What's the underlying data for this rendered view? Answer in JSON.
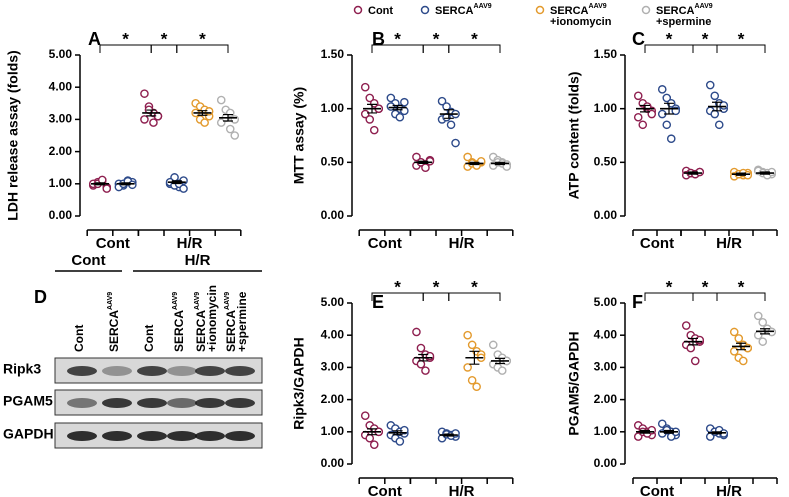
{
  "legend": [
    {
      "base": "Cont",
      "color": "#8e1f4f"
    },
    {
      "base": "SERCA",
      "sup": "AAV9",
      "color": "#2d4a8a"
    },
    {
      "base": "SERCA",
      "sup": "AAV9",
      "extra": "+ionomycin",
      "color": "#e39a2d"
    },
    {
      "base": "SERCA",
      "sup": "AAV9",
      "extra": "+spermine",
      "color": "#b0b0b0"
    }
  ],
  "chart_data": [
    {
      "type": "dotplot",
      "panel": "A",
      "ylabel": "LDH release assay (folds)",
      "ylim": [
        0,
        5
      ],
      "yticks": [
        {
          "value": 0,
          "label": "0.00"
        },
        {
          "value": 1,
          "label": "1.00"
        },
        {
          "value": 2,
          "label": "2.00"
        },
        {
          "value": 3,
          "label": "3.00"
        },
        {
          "value": 4,
          "label": "4.00"
        },
        {
          "value": 5,
          "label": "5.00"
        }
      ],
      "groups": [
        {
          "label": "Cont",
          "series": [
            0,
            1
          ]
        },
        {
          "label": "H/R",
          "series": [
            2,
            3,
            4,
            5
          ]
        }
      ],
      "comparisons": [
        {
          "from": 0,
          "to": 2,
          "label": "*"
        },
        {
          "from": 2,
          "to": 3,
          "label": "*"
        },
        {
          "from": 3,
          "to": 5,
          "label": "*"
        }
      ],
      "series": [
        {
          "legend": 0,
          "values": [
            0.95,
            1.05,
            1.1,
            0.9,
            1.0,
            1.0,
            1.12,
            0.85
          ],
          "mean": 1.0,
          "sem": 0.03
        },
        {
          "legend": 1,
          "values": [
            1.0,
            0.95,
            1.1,
            1.05,
            0.9,
            1.0,
            1.08,
            0.97
          ],
          "mean": 1.0,
          "sem": 0.03
        },
        {
          "legend": 0,
          "values": [
            3.8,
            3.4,
            3.2,
            3.1,
            3.0,
            3.3,
            2.9,
            3.1
          ],
          "mean": 3.2,
          "sem": 0.09
        },
        {
          "legend": 1,
          "values": [
            1.0,
            1.2,
            0.9,
            1.1,
            1.05,
            0.95,
            1.0,
            0.85
          ],
          "mean": 1.05,
          "sem": 0.04
        },
        {
          "legend": 2,
          "values": [
            3.5,
            3.4,
            3.3,
            3.1,
            3.2,
            3.0,
            2.9,
            3.25
          ],
          "mean": 3.2,
          "sem": 0.07
        },
        {
          "legend": 3,
          "values": [
            3.6,
            3.3,
            3.2,
            3.0,
            2.9,
            3.05,
            2.7,
            2.5
          ],
          "mean": 3.05,
          "sem": 0.1
        }
      ]
    },
    {
      "type": "dotplot",
      "panel": "B",
      "ylabel": "MTT assay (%)",
      "ylim": [
        0,
        1.5
      ],
      "yticks": [
        {
          "value": 0,
          "label": "0.00"
        },
        {
          "value": 0.5,
          "label": "0.50"
        },
        {
          "value": 1,
          "label": "1.00"
        },
        {
          "value": 1.5,
          "label": "1.50"
        }
      ],
      "groups": [
        {
          "label": "Cont",
          "series": [
            0,
            1
          ]
        },
        {
          "label": "H/R",
          "series": [
            2,
            3,
            4,
            5
          ]
        }
      ],
      "comparisons": [
        {
          "from": 0,
          "to": 2,
          "label": "*"
        },
        {
          "from": 2,
          "to": 3,
          "label": "*"
        },
        {
          "from": 3,
          "to": 5,
          "label": "*"
        }
      ],
      "series": [
        {
          "legend": 0,
          "values": [
            1.2,
            1.1,
            1.05,
            1.0,
            0.95,
            0.9,
            0.8,
            1.0
          ],
          "mean": 1.0,
          "sem": 0.04
        },
        {
          "legend": 1,
          "values": [
            1.1,
            1.05,
            1.0,
            0.98,
            1.02,
            0.95,
            0.92,
            1.06
          ],
          "mean": 1.01,
          "sem": 0.02
        },
        {
          "legend": 0,
          "values": [
            0.55,
            0.5,
            0.48,
            0.52,
            0.47,
            0.5,
            0.45,
            0.51
          ],
          "mean": 0.5,
          "sem": 0.01
        },
        {
          "legend": 1,
          "values": [
            1.07,
            1.02,
            0.97,
            0.95,
            0.9,
            0.92,
            0.85,
            0.68
          ],
          "mean": 0.95,
          "sem": 0.04
        },
        {
          "legend": 2,
          "values": [
            0.55,
            0.5,
            0.48,
            0.5,
            0.46,
            0.49,
            0.47,
            0.51
          ],
          "mean": 0.49,
          "sem": 0.01
        },
        {
          "legend": 3,
          "values": [
            0.55,
            0.52,
            0.5,
            0.48,
            0.47,
            0.5,
            0.49,
            0.46
          ],
          "mean": 0.49,
          "sem": 0.01
        }
      ]
    },
    {
      "type": "dotplot",
      "panel": "C",
      "ylabel": "ATP content (folds)",
      "ylim": [
        0,
        1.5
      ],
      "yticks": [
        {
          "value": 0,
          "label": "0.00"
        },
        {
          "value": 0.5,
          "label": "0.50"
        },
        {
          "value": 1,
          "label": "1.00"
        },
        {
          "value": 1.5,
          "label": "1.50"
        }
      ],
      "groups": [
        {
          "label": "Cont",
          "series": [
            0,
            1
          ]
        },
        {
          "label": "H/R",
          "series": [
            2,
            3,
            4,
            5
          ]
        }
      ],
      "comparisons": [
        {
          "from": 0,
          "to": 2,
          "label": "*"
        },
        {
          "from": 2,
          "to": 3,
          "label": "*"
        },
        {
          "from": 3,
          "to": 5,
          "label": "*"
        }
      ],
      "series": [
        {
          "legend": 0,
          "values": [
            1.12,
            1.05,
            1.0,
            0.98,
            0.92,
            0.85,
            1.02,
            0.95
          ],
          "mean": 1.0,
          "sem": 0.03
        },
        {
          "legend": 1,
          "values": [
            1.18,
            1.1,
            1.05,
            1.0,
            0.95,
            0.85,
            0.72,
            0.98
          ],
          "mean": 1.0,
          "sem": 0.05
        },
        {
          "legend": 0,
          "values": [
            0.42,
            0.4,
            0.39,
            0.41,
            0.38,
            0.4,
            0.39,
            0.41
          ],
          "mean": 0.4,
          "sem": 0.01
        },
        {
          "legend": 1,
          "values": [
            1.22,
            1.12,
            1.05,
            1.0,
            0.98,
            0.95,
            0.85,
            1.03
          ],
          "mean": 1.02,
          "sem": 0.04
        },
        {
          "legend": 2,
          "values": [
            0.41,
            0.39,
            0.38,
            0.4,
            0.37,
            0.39,
            0.4,
            0.38
          ],
          "mean": 0.39,
          "sem": 0.01
        },
        {
          "legend": 3,
          "values": [
            0.43,
            0.41,
            0.4,
            0.39,
            0.42,
            0.4,
            0.38,
            0.41
          ],
          "mean": 0.4,
          "sem": 0.01
        }
      ]
    },
    {
      "type": "dotplot",
      "panel": "E",
      "ylabel": "Ripk3/GAPDH",
      "ylim": [
        0,
        5
      ],
      "yticks": [
        {
          "value": 0,
          "label": "0.00"
        },
        {
          "value": 1,
          "label": "1.00"
        },
        {
          "value": 2,
          "label": "2.00"
        },
        {
          "value": 3,
          "label": "3.00"
        },
        {
          "value": 4,
          "label": "4.00"
        },
        {
          "value": 5,
          "label": "5.00"
        }
      ],
      "groups": [
        {
          "label": "Cont",
          "series": [
            0,
            1
          ]
        },
        {
          "label": "H/R",
          "series": [
            2,
            3,
            4,
            5
          ]
        }
      ],
      "comparisons": [
        {
          "from": 0,
          "to": 2,
          "label": "*"
        },
        {
          "from": 2,
          "to": 3,
          "label": "*"
        },
        {
          "from": 3,
          "to": 5,
          "label": "*"
        }
      ],
      "series": [
        {
          "legend": 0,
          "values": [
            1.5,
            1.2,
            1.1,
            1.0,
            0.9,
            0.8,
            0.6,
            1.0
          ],
          "mean": 1.0,
          "sem": 0.09
        },
        {
          "legend": 1,
          "values": [
            1.2,
            1.1,
            1.0,
            0.95,
            0.9,
            0.8,
            0.7,
            1.05
          ],
          "mean": 0.97,
          "sem": 0.06
        },
        {
          "legend": 0,
          "values": [
            4.1,
            3.6,
            3.4,
            3.3,
            3.2,
            3.1,
            2.9,
            3.35
          ],
          "mean": 3.3,
          "sem": 0.1
        },
        {
          "legend": 1,
          "values": [
            1.0,
            0.95,
            0.9,
            0.85,
            0.8,
            0.92,
            0.88,
            0.95
          ],
          "mean": 0.9,
          "sem": 0.03
        },
        {
          "legend": 2,
          "values": [
            4.0,
            3.7,
            3.5,
            3.4,
            3.0,
            2.6,
            2.4,
            3.3
          ],
          "mean": 3.3,
          "sem": 0.2
        },
        {
          "legend": 3,
          "values": [
            3.7,
            3.4,
            3.3,
            3.2,
            3.1,
            3.0,
            2.9,
            3.2
          ],
          "mean": 3.2,
          "sem": 0.08
        }
      ]
    },
    {
      "type": "dotplot",
      "panel": "F",
      "ylabel": "PGAM5/GAPDH",
      "ylim": [
        0,
        5
      ],
      "yticks": [
        {
          "value": 0,
          "label": "0.00"
        },
        {
          "value": 1,
          "label": "1.00"
        },
        {
          "value": 2,
          "label": "2.00"
        },
        {
          "value": 3,
          "label": "3.00"
        },
        {
          "value": 4,
          "label": "4.00"
        },
        {
          "value": 5,
          "label": "5.00"
        }
      ],
      "groups": [
        {
          "label": "Cont",
          "series": [
            0,
            1
          ]
        },
        {
          "label": "H/R",
          "series": [
            2,
            3,
            4,
            5
          ]
        }
      ],
      "comparisons": [
        {
          "from": 0,
          "to": 2,
          "label": "*"
        },
        {
          "from": 2,
          "to": 3,
          "label": "*"
        },
        {
          "from": 3,
          "to": 5,
          "label": "*"
        }
      ],
      "series": [
        {
          "legend": 0,
          "values": [
            1.2,
            1.1,
            1.0,
            0.9,
            0.85,
            1.0,
            0.95,
            1.05
          ],
          "mean": 1.0,
          "sem": 0.04
        },
        {
          "legend": 1,
          "values": [
            1.25,
            1.1,
            1.0,
            0.9,
            0.95,
            1.05,
            0.85,
            1.0
          ],
          "mean": 1.0,
          "sem": 0.04
        },
        {
          "legend": 0,
          "values": [
            4.3,
            4.0,
            3.9,
            3.8,
            3.7,
            3.6,
            3.2,
            3.85
          ],
          "mean": 3.8,
          "sem": 0.1
        },
        {
          "legend": 1,
          "values": [
            1.1,
            1.0,
            0.95,
            0.9,
            0.85,
            1.0,
            1.05,
            0.95
          ],
          "mean": 0.97,
          "sem": 0.03
        },
        {
          "legend": 2,
          "values": [
            4.1,
            3.9,
            3.7,
            3.6,
            3.5,
            3.3,
            3.2,
            3.6
          ],
          "mean": 3.65,
          "sem": 0.1
        },
        {
          "legend": 3,
          "values": [
            4.6,
            4.4,
            4.2,
            4.1,
            4.0,
            3.8,
            4.2,
            4.1
          ],
          "mean": 4.12,
          "sem": 0.08
        }
      ]
    }
  ],
  "blot": {
    "panel": "D",
    "headers": [
      "Cont",
      "H/R"
    ],
    "lanes": [
      {
        "base": "Cont"
      },
      {
        "base": "SERCA",
        "sup": "AAV9"
      },
      {
        "base": "Cont"
      },
      {
        "base": "SERCA",
        "sup": "AAV9"
      },
      {
        "base": "SERCA",
        "sup": "AAV9",
        "extra": "+ionomycin"
      },
      {
        "base": "SERCA",
        "sup": "AAV9",
        "extra": "+spermine"
      }
    ],
    "rows": [
      "Ripk3",
      "PGAM5",
      "GAPDH"
    ]
  }
}
